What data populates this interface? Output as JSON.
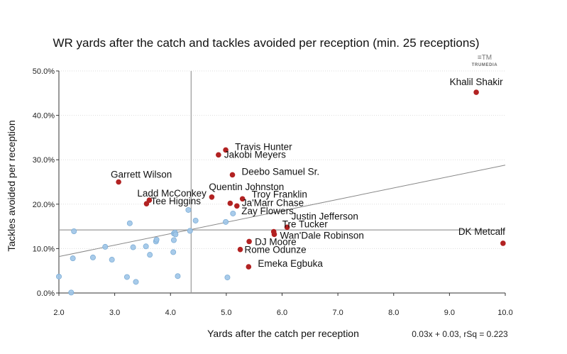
{
  "brand": {
    "mark": "≡TM",
    "name": "TRUMEDIA"
  },
  "chart_data": {
    "type": "scatter",
    "title": "WR yards after the catch and tackles avoided per reception (min. 25 receptions)",
    "xlabel": "Yards after the catch per reception",
    "ylabel": "Tackles avoided per reception",
    "xlim": [
      2.0,
      10.0
    ],
    "ylim": [
      0.0,
      50.0
    ],
    "x_ticks": [
      "2.0",
      "3.0",
      "4.0",
      "5.0",
      "6.0",
      "7.0",
      "8.0",
      "9.0",
      "10.0"
    ],
    "y_ticks": [
      "0.0%",
      "10.0%",
      "20.0%",
      "30.0%",
      "40.0%",
      "50.0%"
    ],
    "reference_lines": {
      "x": 4.37,
      "y": 14.2
    },
    "trendline": {
      "slope": 0.03,
      "intercept": 0.03,
      "rsq": 0.223,
      "y_at_xmin": 8.2,
      "y_at_xmax": 28.8
    },
    "formula_text": "0.03x + 0.03, rSq = 0.223",
    "colors": {
      "highlight": "#b22222",
      "other": "#9ec5e8",
      "other_stroke": "#7eaed6",
      "refline": "#999999",
      "trend": "#888888"
    },
    "highlighted": [
      {
        "name": "Khalil Shakir",
        "x": 9.48,
        "y": 45.2
      },
      {
        "name": "Travis Hunter",
        "x": 4.99,
        "y": 32.2
      },
      {
        "name": "Jakobi Meyers",
        "x": 4.86,
        "y": 31.1
      },
      {
        "name": "Deebo Samuel Sr.",
        "x": 5.11,
        "y": 26.6
      },
      {
        "name": "Garrett Wilson",
        "x": 3.07,
        "y": 25.0
      },
      {
        "name": "Quentin Johnston",
        "x": 4.74,
        "y": 21.6
      },
      {
        "name": "Troy Franklin",
        "x": 5.29,
        "y": 21.2
      },
      {
        "name": "Ladd McConkey",
        "x": 3.62,
        "y": 20.9
      },
      {
        "name": "Tee Higgins",
        "x": 3.57,
        "y": 20.1
      },
      {
        "name": "Ja'Marr Chase",
        "x": 5.07,
        "y": 20.2
      },
      {
        "name": "Ja'Marr Chase (point 2)",
        "x": 5.19,
        "y": 19.6
      },
      {
        "name": "Justin Jefferson",
        "x": 6.09,
        "y": 14.8
      },
      {
        "name": "Tre Tucker",
        "x": 5.85,
        "y": 13.8
      },
      {
        "name": "Wan'Dale Robinson",
        "x": 5.86,
        "y": 13.2
      },
      {
        "name": "DK Metcalf",
        "x": 9.96,
        "y": 11.2
      },
      {
        "name": "DJ Moore",
        "x": 5.41,
        "y": 11.6
      },
      {
        "name": "Rome Odunze",
        "x": 5.25,
        "y": 9.8
      },
      {
        "name": "Emeka Egbuka",
        "x": 5.4,
        "y": 5.9
      }
    ],
    "labels": [
      {
        "text": "Khalil Shakir",
        "x": 9.48,
        "y": 45.2,
        "anchor": "middle",
        "dx": 0,
        "dy": -10
      },
      {
        "text": "Travis Hunter",
        "x": 4.99,
        "y": 32.2,
        "anchor": "start",
        "dx": 13,
        "dy": 0
      },
      {
        "text": "Jakobi Meyers",
        "x": 4.86,
        "y": 31.1,
        "anchor": "start",
        "dx": 8,
        "dy": 4
      },
      {
        "text": "Deebo Samuel Sr.",
        "x": 5.11,
        "y": 26.6,
        "anchor": "start",
        "dx": 13,
        "dy": 0
      },
      {
        "text": "Garrett Wilson",
        "x": 3.07,
        "y": 25.0,
        "anchor": "middle",
        "dx": 32,
        "dy": -6
      },
      {
        "text": "Quentin Johnston",
        "x": 4.74,
        "y": 21.6,
        "anchor": "start",
        "dx": -4,
        "dy": -10
      },
      {
        "text": "Troy Franklin",
        "x": 5.29,
        "y": 21.2,
        "anchor": "start",
        "dx": 13,
        "dy": -2
      },
      {
        "text": "Ladd McConkey",
        "x": 3.62,
        "y": 20.9,
        "anchor": "start",
        "dx": -17,
        "dy": -5
      },
      {
        "text": "Tee Higgins",
        "x": 3.57,
        "y": 20.1,
        "anchor": "start",
        "dx": 6,
        "dy": 1
      },
      {
        "text": "Ja'Marr Chase",
        "x": 5.19,
        "y": 19.6,
        "anchor": "start",
        "dx": 7,
        "dy": 0
      },
      {
        "text": "Zay Flowers",
        "x": 5.12,
        "y": 17.9,
        "anchor": "start",
        "dx": 12,
        "dy": 1
      },
      {
        "text": "Justin Jefferson",
        "x": 6.09,
        "y": 14.8,
        "anchor": "start",
        "dx": 6,
        "dy": -11
      },
      {
        "text": "Tre Tucker",
        "x": 5.85,
        "y": 13.8,
        "anchor": "start",
        "dx": 12,
        "dy": -6
      },
      {
        "text": "Wan'Dale Robinson",
        "x": 5.86,
        "y": 13.2,
        "anchor": "start",
        "dx": 8,
        "dy": 6
      },
      {
        "text": "DK Metcalf",
        "x": 9.96,
        "y": 11.2,
        "anchor": "end",
        "dx": 3,
        "dy": -12
      },
      {
        "text": "DJ Moore",
        "x": 5.41,
        "y": 11.6,
        "anchor": "start",
        "dx": 8,
        "dy": 5
      },
      {
        "text": "Rome Odunze",
        "x": 5.25,
        "y": 9.8,
        "anchor": "start",
        "dx": 6,
        "dy": 5
      },
      {
        "text": "Emeka Egbuka",
        "x": 5.4,
        "y": 5.9,
        "anchor": "start",
        "dx": 13,
        "dy": 0
      }
    ],
    "others": [
      {
        "x": 2.0,
        "y": 3.7
      },
      {
        "x": 2.22,
        "y": 0.1
      },
      {
        "x": 2.25,
        "y": 7.8
      },
      {
        "x": 2.27,
        "y": 13.9
      },
      {
        "x": 2.61,
        "y": 8.0
      },
      {
        "x": 2.83,
        "y": 10.4
      },
      {
        "x": 2.95,
        "y": 7.5
      },
      {
        "x": 3.22,
        "y": 3.6
      },
      {
        "x": 3.27,
        "y": 15.7
      },
      {
        "x": 3.33,
        "y": 10.3
      },
      {
        "x": 3.38,
        "y": 2.5
      },
      {
        "x": 3.56,
        "y": 10.5
      },
      {
        "x": 3.63,
        "y": 8.6
      },
      {
        "x": 3.74,
        "y": 11.6
      },
      {
        "x": 3.75,
        "y": 12.0
      },
      {
        "x": 4.05,
        "y": 9.2
      },
      {
        "x": 4.06,
        "y": 11.9
      },
      {
        "x": 4.06,
        "y": 13.4
      },
      {
        "x": 4.08,
        "y": 13.6
      },
      {
        "x": 4.09,
        "y": 13.2
      },
      {
        "x": 4.13,
        "y": 3.8
      },
      {
        "x": 4.32,
        "y": 18.7
      },
      {
        "x": 4.35,
        "y": 14.0
      },
      {
        "x": 4.45,
        "y": 16.3
      },
      {
        "x": 4.99,
        "y": 16.0
      },
      {
        "x": 5.02,
        "y": 3.5
      },
      {
        "x": 5.12,
        "y": 17.9
      }
    ]
  }
}
